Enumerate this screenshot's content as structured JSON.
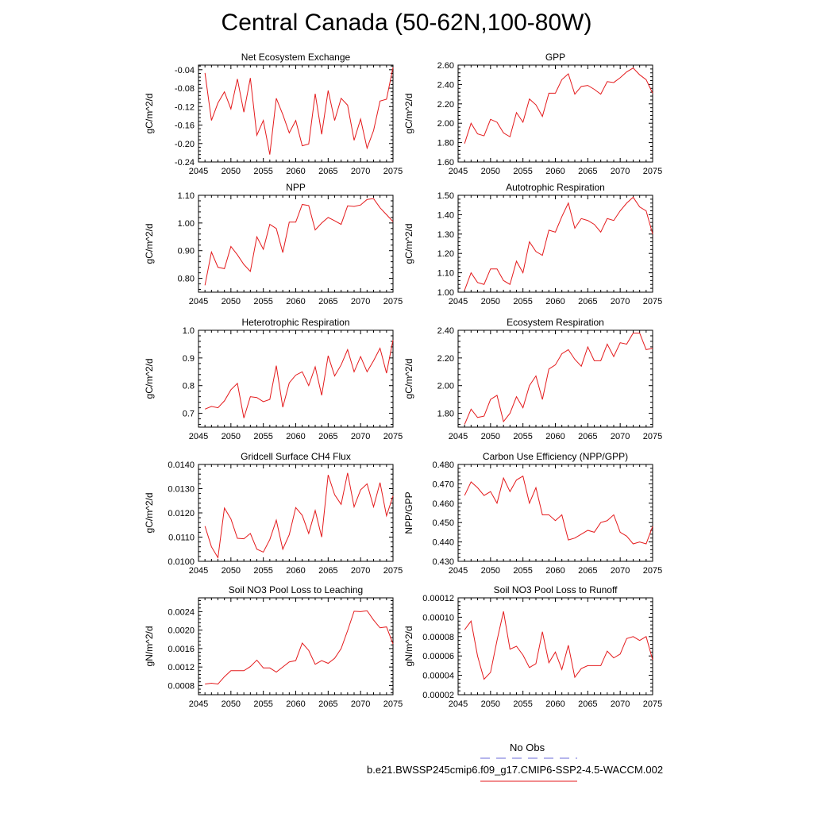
{
  "page": {
    "title": "Central Canada (50-62N,100-80W)"
  },
  "legend": {
    "obs_label": "No Obs",
    "obs_color": "#6b6bd9",
    "model_label": "b.e21.BWSSP245cmip6.f09_g17.CMIP6-SSP2-4.5-WACCM.002",
    "model_color": "#e41a1c"
  },
  "chart_data": [
    {
      "type": "line",
      "title": "Net Ecosystem Exchange",
      "ylabel": "gC/m^2/d",
      "xlim": [
        2045,
        2075
      ],
      "ylim": [
        -0.24,
        -0.03
      ],
      "yticks": [
        -0.04,
        -0.08,
        -0.12,
        -0.16,
        -0.2,
        -0.24
      ],
      "yticklabels": [
        "-0.04",
        "-0.08",
        "-0.12",
        "-0.16",
        "-0.20",
        "-0.24"
      ],
      "xticks": [
        2045,
        2050,
        2055,
        2060,
        2065,
        2070,
        2075
      ],
      "x": [
        2046,
        2047,
        2048,
        2049,
        2050,
        2051,
        2052,
        2053,
        2054,
        2055,
        2056,
        2057,
        2058,
        2059,
        2060,
        2061,
        2062,
        2063,
        2064,
        2065,
        2066,
        2067,
        2068,
        2069,
        2070,
        2071,
        2072,
        2073,
        2074,
        2075
      ],
      "series": [
        {
          "values": [
            -0.047,
            -0.15,
            -0.112,
            -0.088,
            -0.125,
            -0.06,
            -0.132,
            -0.058,
            -0.182,
            -0.15,
            -0.224,
            -0.102,
            -0.137,
            -0.177,
            -0.15,
            -0.205,
            -0.201,
            -0.092,
            -0.18,
            -0.085,
            -0.15,
            -0.102,
            -0.117,
            -0.193,
            -0.147,
            -0.21,
            -0.172,
            -0.108,
            -0.104,
            -0.035
          ]
        }
      ]
    },
    {
      "type": "line",
      "title": "GPP",
      "ylabel": "gC/m^2/d",
      "xlim": [
        2045,
        2075
      ],
      "ylim": [
        1.6,
        2.6
      ],
      "yticks": [
        1.6,
        1.8,
        2.0,
        2.2,
        2.4,
        2.6
      ],
      "yticklabels": [
        "1.60",
        "1.80",
        "2.00",
        "2.20",
        "2.40",
        "2.60"
      ],
      "xticks": [
        2045,
        2050,
        2055,
        2060,
        2065,
        2070,
        2075
      ],
      "x": [
        2046,
        2047,
        2048,
        2049,
        2050,
        2051,
        2052,
        2053,
        2054,
        2055,
        2056,
        2057,
        2058,
        2059,
        2060,
        2061,
        2062,
        2063,
        2064,
        2065,
        2066,
        2067,
        2068,
        2069,
        2070,
        2071,
        2072,
        2073,
        2074,
        2075
      ],
      "series": [
        {
          "values": [
            1.79,
            2.0,
            1.89,
            1.87,
            2.04,
            2.01,
            1.9,
            1.86,
            2.11,
            2.01,
            2.25,
            2.19,
            2.07,
            2.31,
            2.31,
            2.45,
            2.51,
            2.3,
            2.38,
            2.39,
            2.35,
            2.3,
            2.43,
            2.42,
            2.47,
            2.53,
            2.57,
            2.5,
            2.45,
            2.31
          ]
        }
      ]
    },
    {
      "type": "line",
      "title": "NPP",
      "ylabel": "gC/m^2/d",
      "xlim": [
        2045,
        2075
      ],
      "ylim": [
        0.75,
        1.1
      ],
      "yticks": [
        0.8,
        0.9,
        1.0,
        1.1
      ],
      "yticklabels": [
        "0.80",
        "0.90",
        "1.00",
        "1.10"
      ],
      "xticks": [
        2045,
        2050,
        2055,
        2060,
        2065,
        2070,
        2075
      ],
      "x": [
        2046,
        2047,
        2048,
        2049,
        2050,
        2051,
        2052,
        2053,
        2054,
        2055,
        2056,
        2057,
        2058,
        2059,
        2060,
        2061,
        2062,
        2063,
        2064,
        2065,
        2066,
        2067,
        2068,
        2069,
        2070,
        2071,
        2072,
        2073,
        2074,
        2075
      ],
      "series": [
        {
          "values": [
            0.775,
            0.895,
            0.84,
            0.835,
            0.915,
            0.885,
            0.85,
            0.825,
            0.95,
            0.905,
            0.995,
            0.98,
            0.893,
            1.003,
            1.003,
            1.067,
            1.063,
            0.975,
            1.0,
            1.02,
            1.008,
            0.995,
            1.062,
            1.06,
            1.065,
            1.085,
            1.088,
            1.055,
            1.03,
            1.005
          ]
        }
      ]
    },
    {
      "type": "line",
      "title": "Autotrophic Respiration",
      "ylabel": "gC/m^2/d",
      "xlim": [
        2045,
        2075
      ],
      "ylim": [
        1.0,
        1.5
      ],
      "yticks": [
        1.0,
        1.1,
        1.2,
        1.3,
        1.4,
        1.5
      ],
      "yticklabels": [
        "1.00",
        "1.10",
        "1.20",
        "1.30",
        "1.40",
        "1.50"
      ],
      "xticks": [
        2045,
        2050,
        2055,
        2060,
        2065,
        2070,
        2075
      ],
      "x": [
        2046,
        2047,
        2048,
        2049,
        2050,
        2051,
        2052,
        2053,
        2054,
        2055,
        2056,
        2057,
        2058,
        2059,
        2060,
        2061,
        2062,
        2063,
        2064,
        2065,
        2066,
        2067,
        2068,
        2069,
        2070,
        2071,
        2072,
        2073,
        2074,
        2075
      ],
      "series": [
        {
          "values": [
            1.01,
            1.1,
            1.05,
            1.04,
            1.12,
            1.12,
            1.06,
            1.04,
            1.16,
            1.1,
            1.26,
            1.21,
            1.19,
            1.32,
            1.31,
            1.39,
            1.46,
            1.33,
            1.38,
            1.37,
            1.35,
            1.31,
            1.38,
            1.37,
            1.42,
            1.46,
            1.49,
            1.44,
            1.42,
            1.3
          ]
        }
      ]
    },
    {
      "type": "line",
      "title": "Heterotrophic Respiration",
      "ylabel": "gC/m^2/d",
      "xlim": [
        2045,
        2075
      ],
      "ylim": [
        0.65,
        1.0
      ],
      "yticks": [
        0.7,
        0.8,
        0.9,
        1.0
      ],
      "yticklabels": [
        "0.7",
        "0.8",
        "0.9",
        "1.0"
      ],
      "xticks": [
        2045,
        2050,
        2055,
        2060,
        2065,
        2070,
        2075
      ],
      "x": [
        2046,
        2047,
        2048,
        2049,
        2050,
        2051,
        2052,
        2053,
        2054,
        2055,
        2056,
        2057,
        2058,
        2059,
        2060,
        2061,
        2062,
        2063,
        2064,
        2065,
        2066,
        2067,
        2068,
        2069,
        2070,
        2071,
        2072,
        2073,
        2074,
        2075
      ],
      "series": [
        {
          "values": [
            0.715,
            0.725,
            0.72,
            0.745,
            0.785,
            0.808,
            0.683,
            0.76,
            0.757,
            0.742,
            0.75,
            0.872,
            0.722,
            0.81,
            0.838,
            0.85,
            0.8,
            0.868,
            0.765,
            0.908,
            0.835,
            0.875,
            0.93,
            0.85,
            0.905,
            0.85,
            0.89,
            0.935,
            0.845,
            0.965
          ]
        }
      ]
    },
    {
      "type": "line",
      "title": "Ecosystem Respiration",
      "ylabel": "gC/m^2/d",
      "xlim": [
        2045,
        2075
      ],
      "ylim": [
        1.7,
        2.4
      ],
      "yticks": [
        1.8,
        2.0,
        2.2,
        2.4
      ],
      "yticklabels": [
        "1.80",
        "2.00",
        "2.20",
        "2.40"
      ],
      "xticks": [
        2045,
        2050,
        2055,
        2060,
        2065,
        2070,
        2075
      ],
      "x": [
        2046,
        2047,
        2048,
        2049,
        2050,
        2051,
        2052,
        2053,
        2054,
        2055,
        2056,
        2057,
        2058,
        2059,
        2060,
        2061,
        2062,
        2063,
        2064,
        2065,
        2066,
        2067,
        2068,
        2069,
        2070,
        2071,
        2072,
        2073,
        2074,
        2075
      ],
      "series": [
        {
          "values": [
            1.72,
            1.83,
            1.77,
            1.78,
            1.9,
            1.93,
            1.74,
            1.8,
            1.92,
            1.84,
            2.0,
            2.07,
            1.9,
            2.12,
            2.15,
            2.23,
            2.26,
            2.19,
            2.14,
            2.28,
            2.18,
            2.18,
            2.3,
            2.21,
            2.31,
            2.3,
            2.38,
            2.38,
            2.26,
            2.27
          ]
        }
      ]
    },
    {
      "type": "line",
      "title": "Gridcell Surface CH4 Flux",
      "ylabel": "gC/m^2/d",
      "xlim": [
        2045,
        2075
      ],
      "ylim": [
        0.01,
        0.014
      ],
      "yticks": [
        0.01,
        0.011,
        0.012,
        0.013,
        0.014
      ],
      "yticklabels": [
        "0.0100",
        "0.0110",
        "0.0120",
        "0.0130",
        "0.0140"
      ],
      "xticks": [
        2045,
        2050,
        2055,
        2060,
        2065,
        2070,
        2075
      ],
      "x": [
        2046,
        2047,
        2048,
        2049,
        2050,
        2051,
        2052,
        2053,
        2054,
        2055,
        2056,
        2057,
        2058,
        2059,
        2060,
        2061,
        2062,
        2063,
        2064,
        2065,
        2066,
        2067,
        2068,
        2069,
        2070,
        2071,
        2072,
        2073,
        2074,
        2075
      ],
      "series": [
        {
          "values": [
            0.01145,
            0.0106,
            0.01015,
            0.0122,
            0.01175,
            0.01095,
            0.01093,
            0.01115,
            0.0105,
            0.01038,
            0.0109,
            0.0117,
            0.0105,
            0.0111,
            0.01222,
            0.0119,
            0.01115,
            0.0121,
            0.011,
            0.01357,
            0.01275,
            0.01235,
            0.01365,
            0.01225,
            0.01295,
            0.0132,
            0.01225,
            0.01325,
            0.01188,
            0.0127
          ]
        }
      ]
    },
    {
      "type": "line",
      "title": "Carbon Use Efficiency (NPP/GPP)",
      "ylabel": "NPP/GPP",
      "xlim": [
        2045,
        2075
      ],
      "ylim": [
        0.43,
        0.48
      ],
      "yticks": [
        0.43,
        0.44,
        0.45,
        0.46,
        0.47,
        0.48
      ],
      "yticklabels": [
        "0.430",
        "0.440",
        "0.450",
        "0.460",
        "0.470",
        "0.480"
      ],
      "xticks": [
        2045,
        2050,
        2055,
        2060,
        2065,
        2070,
        2075
      ],
      "x": [
        2046,
        2047,
        2048,
        2049,
        2050,
        2051,
        2052,
        2053,
        2054,
        2055,
        2056,
        2057,
        2058,
        2059,
        2060,
        2061,
        2062,
        2063,
        2064,
        2065,
        2066,
        2067,
        2068,
        2069,
        2070,
        2071,
        2072,
        2073,
        2074,
        2075
      ],
      "series": [
        {
          "values": [
            0.464,
            0.471,
            0.468,
            0.464,
            0.466,
            0.46,
            0.473,
            0.466,
            0.472,
            0.474,
            0.46,
            0.468,
            0.454,
            0.454,
            0.451,
            0.454,
            0.441,
            0.442,
            0.444,
            0.446,
            0.445,
            0.45,
            0.451,
            0.454,
            0.445,
            0.443,
            0.439,
            0.44,
            0.439,
            0.448
          ]
        }
      ]
    },
    {
      "type": "line",
      "title": "Soil NO3 Pool Loss to Leaching",
      "ylabel": "gN/m^2/d",
      "xlim": [
        2045,
        2075
      ],
      "ylim": [
        0.0006,
        0.0027
      ],
      "yticks": [
        0.0008,
        0.0012,
        0.0016,
        0.002,
        0.0024
      ],
      "yticklabels": [
        "0.0008",
        "0.0012",
        "0.0016",
        "0.0020",
        "0.0024"
      ],
      "xticks": [
        2045,
        2050,
        2055,
        2060,
        2065,
        2070,
        2075
      ],
      "x": [
        2046,
        2047,
        2048,
        2049,
        2050,
        2051,
        2052,
        2053,
        2054,
        2055,
        2056,
        2057,
        2058,
        2059,
        2060,
        2061,
        2062,
        2063,
        2064,
        2065,
        2066,
        2067,
        2068,
        2069,
        2070,
        2071,
        2072,
        2073,
        2074,
        2075
      ],
      "series": [
        {
          "values": [
            0.00083,
            0.00085,
            0.00083,
            0.00099,
            0.00112,
            0.00112,
            0.00112,
            0.00121,
            0.00135,
            0.00118,
            0.00118,
            0.00109,
            0.0012,
            0.00131,
            0.00134,
            0.00172,
            0.00156,
            0.00126,
            0.00134,
            0.00128,
            0.00139,
            0.0016,
            0.00199,
            0.00241,
            0.0024,
            0.00242,
            0.00222,
            0.00205,
            0.00207,
            0.0017
          ]
        }
      ]
    },
    {
      "type": "line",
      "title": "Soil NO3 Pool Loss to Runoff",
      "ylabel": "gN/m^2/d",
      "xlim": [
        2045,
        2075
      ],
      "ylim": [
        2e-05,
        0.00012
      ],
      "yticks": [
        2e-05,
        4e-05,
        6e-05,
        8e-05,
        0.0001,
        0.00012
      ],
      "yticklabels": [
        "0.00002",
        "0.00004",
        "0.00006",
        "0.00008",
        "0.00010",
        "0.00012"
      ],
      "xticks": [
        2045,
        2050,
        2055,
        2060,
        2065,
        2070,
        2075
      ],
      "x": [
        2046,
        2047,
        2048,
        2049,
        2050,
        2051,
        2052,
        2053,
        2054,
        2055,
        2056,
        2057,
        2058,
        2059,
        2060,
        2061,
        2062,
        2063,
        2064,
        2065,
        2066,
        2067,
        2068,
        2069,
        2070,
        2071,
        2072,
        2073,
        2074,
        2075
      ],
      "series": [
        {
          "values": [
            8.7e-05,
            9.6e-05,
            6e-05,
            3.6e-05,
            4.3e-05,
            7.6e-05,
            0.000106,
            6.7e-05,
            7e-05,
            6.1e-05,
            4.8e-05,
            5.2e-05,
            8.5e-05,
            5.3e-05,
            6.4e-05,
            4.6e-05,
            7.1e-05,
            3.8e-05,
            4.7e-05,
            5e-05,
            5e-05,
            5e-05,
            6.5e-05,
            5.8e-05,
            6.2e-05,
            7.8e-05,
            8e-05,
            7.6e-05,
            8e-05,
            5.6e-05
          ]
        }
      ]
    }
  ]
}
